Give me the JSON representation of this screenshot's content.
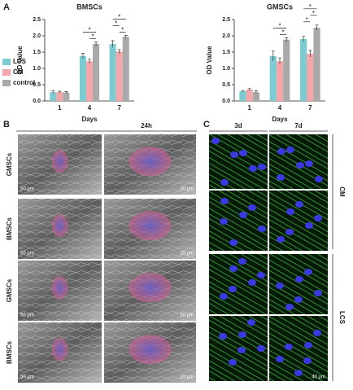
{
  "panel_a": {
    "label": "A"
  },
  "chart_data": [
    {
      "type": "bar",
      "title": "BMSCs",
      "x_label": "Days",
      "y_label": "OD Value",
      "categories": [
        "1",
        "4",
        "7"
      ],
      "series": [
        {
          "name": "LCS",
          "color": "#7ccbd0",
          "values": [
            0.27,
            1.38,
            1.75
          ],
          "errors": [
            0.04,
            0.08,
            0.1
          ]
        },
        {
          "name": "CM",
          "color": "#f4a6aa",
          "values": [
            0.27,
            1.22,
            1.52
          ],
          "errors": [
            0.03,
            0.06,
            0.06
          ]
        },
        {
          "name": "control",
          "color": "#a9a9a9",
          "values": [
            0.26,
            1.75,
            1.97
          ],
          "errors": [
            0.03,
            0.06,
            0.04
          ]
        }
      ],
      "ylim": [
        0,
        2.5
      ],
      "yticks": [
        {
          "value": 0,
          "label": "0.0"
        },
        0.5,
        {
          "value": 1,
          "label": "1.0"
        },
        1.5,
        {
          "value": 2,
          "label": "2.0"
        },
        2.5
      ],
      "significance": [
        {
          "category": 1,
          "pair": [
            1,
            2
          ],
          "label": "*"
        },
        {
          "category": 1,
          "pair": [
            0,
            2
          ],
          "label": "*"
        },
        {
          "category": 2,
          "pair": [
            1,
            2
          ],
          "label": "*"
        },
        {
          "category": 2,
          "pair": [
            0,
            1
          ],
          "label": "*"
        },
        {
          "category": 2,
          "pair": [
            0,
            2
          ],
          "label": "*"
        }
      ]
    },
    {
      "type": "bar",
      "title": "GMSCs",
      "x_label": "Days",
      "y_label": "OD Value",
      "categories": [
        "1",
        "4",
        "7"
      ],
      "series": [
        {
          "color": "#7ccbd0",
          "values": [
            0.3,
            1.38,
            1.9
          ],
          "errors": [
            0.02,
            0.15,
            0.08
          ]
        },
        {
          "color": "#f4a6aa",
          "values": [
            0.35,
            1.22,
            1.45
          ],
          "errors": [
            0.03,
            0.1,
            0.1
          ]
        },
        {
          "color": "#a9a9a9",
          "values": [
            0.27,
            1.88,
            2.25
          ],
          "errors": [
            0.04,
            0.06,
            0.08
          ]
        }
      ],
      "ylim": [
        0,
        2.5
      ],
      "yticks": [
        {
          "value": 0,
          "label": "0.0"
        },
        0.5,
        {
          "value": 1,
          "label": "1.0"
        },
        1.5,
        {
          "value": 2,
          "label": "2.0"
        },
        2.5
      ],
      "significance": [
        {
          "category": 1,
          "pair": [
            1,
            2
          ],
          "label": "*"
        },
        {
          "category": 1,
          "pair": [
            0,
            2
          ],
          "label": "*"
        },
        {
          "category": 2,
          "pair": [
            0,
            1
          ],
          "label": "*"
        },
        {
          "category": 2,
          "pair": [
            1,
            2
          ],
          "label": "*"
        },
        {
          "category": 2,
          "pair": [
            0,
            2
          ],
          "label": "*"
        }
      ]
    }
  ],
  "panel_b": {
    "label": "B",
    "time": "24h",
    "rows": [
      {
        "label": "GMSCs",
        "scale_bars": [
          "50 μm",
          "10 μm"
        ]
      },
      {
        "label": "BMSCs",
        "scale_bars": [
          "50 μm",
          "10 μm"
        ]
      },
      {
        "label": "GMSCs",
        "scale_bars": [
          "50 μm",
          "10 μm"
        ]
      },
      {
        "label": "BMSCs",
        "scale_bars": [
          "50 μm",
          "10 μm"
        ]
      }
    ]
  },
  "panel_c": {
    "label": "C",
    "columns": [
      "3d",
      "7d"
    ],
    "groups": [
      "CM",
      "LCS"
    ],
    "scale_bar": "40 μm"
  }
}
